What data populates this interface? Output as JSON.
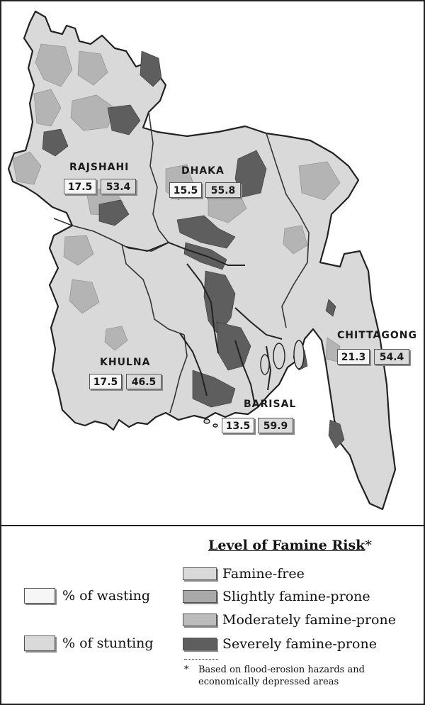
{
  "regions": [
    {
      "name": "RAJSHAHI",
      "wasting": "17.5",
      "stunting": "53.4"
    },
    {
      "name": "DHAKA",
      "wasting": "15.5",
      "stunting": "55.8"
    },
    {
      "name": "KHULNA",
      "wasting": "17.5",
      "stunting": "46.5"
    },
    {
      "name": "BARISAL",
      "wasting": "13.5",
      "stunting": "59.9"
    },
    {
      "name": "CHITTAGONG",
      "wasting": "21.3",
      "stunting": "54.4"
    }
  ],
  "legend": {
    "title": "Level of Famine Risk",
    "title_marker": "*",
    "risk_levels": [
      {
        "label": "Famine-free",
        "color": "#d9d9d9"
      },
      {
        "label": "Slightly famine-prone",
        "color": "#a9a9a9"
      },
      {
        "label": "Moderately famine-prone",
        "color": "#bcbcbc"
      },
      {
        "label": "Severely famine-prone",
        "color": "#5e5e5e"
      }
    ],
    "indicators": [
      {
        "label": "% of wasting",
        "color": "#f6f6f6"
      },
      {
        "label": "% of stunting",
        "color": "#dadada"
      }
    ],
    "note_marker": "*",
    "note_line1": "Based on flood-erosion hazards and",
    "note_line2": "economically depressed areas"
  }
}
